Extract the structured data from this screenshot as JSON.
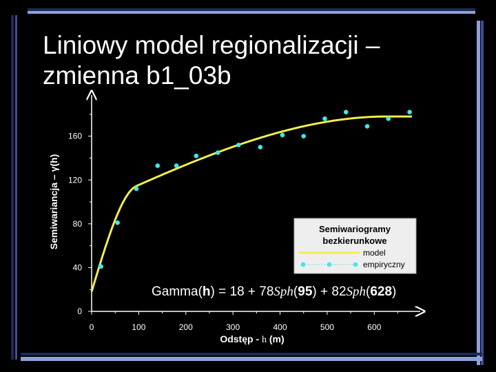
{
  "slide": {
    "title_line1": "Liniowy model regionalizacji –",
    "title_line2": "zmienna b1_03b",
    "colors": {
      "background": "#000000",
      "bar_dark": "#1c2a55",
      "bar_mid": "#3c4f92",
      "bar_light": "#8f9fd8",
      "model_line": "#f2ee4a",
      "points": "#3ee8ee"
    }
  },
  "chart_data": {
    "type": "scatter",
    "title": "",
    "xlabel_parts": [
      "Odstęp - ",
      "h",
      " (m)"
    ],
    "ylabel": "Semiwariancja – γ(h)",
    "x_ticks": [
      0,
      100,
      200,
      300,
      400,
      500,
      600
    ],
    "y_ticks": [
      0,
      40,
      80,
      120,
      160
    ],
    "xlim": [
      0,
      680
    ],
    "ylim": [
      0,
      190
    ],
    "series": [
      {
        "name": "empiryczny",
        "type": "scatter",
        "x": [
          20,
          55,
          95,
          140,
          180,
          222,
          268,
          312,
          358,
          405,
          450,
          495,
          540,
          585,
          630,
          675
        ],
        "y": [
          41,
          81,
          112,
          133,
          133,
          142,
          145,
          152,
          150,
          161,
          160,
          176,
          182,
          169,
          176,
          182
        ]
      },
      {
        "name": "model",
        "type": "line",
        "nugget": 18,
        "components": [
          {
            "sill": 78,
            "range": 95,
            "model": "Sph"
          },
          {
            "sill": 82,
            "range": 628,
            "model": "Sph"
          }
        ],
        "x_max": 680
      }
    ],
    "legend": {
      "position": "center-right",
      "title_line1": "Semiwariogramy",
      "title_line2": "bezkierunkowe",
      "entries": [
        "model",
        "empiryczny"
      ]
    },
    "annotation": {
      "prefix": "Gamma(",
      "h": "h",
      "part1": ") = 18 + 78",
      "sph1": "Sph",
      "open1": "(",
      "r1": "95",
      "mid": ") + 82",
      "sph2": "Sph",
      "open2": "(",
      "r2": "628",
      "close": ")"
    }
  }
}
